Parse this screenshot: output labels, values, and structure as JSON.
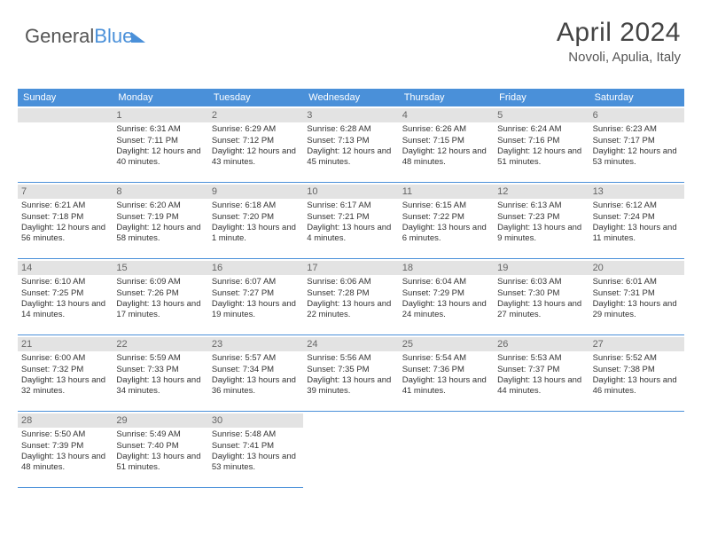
{
  "logo": {
    "part1": "General",
    "part2": "Blue"
  },
  "title": "April 2024",
  "location": "Novoli, Apulia, Italy",
  "weekdays": [
    "Sunday",
    "Monday",
    "Tuesday",
    "Wednesday",
    "Thursday",
    "Friday",
    "Saturday"
  ],
  "colors": {
    "accent": "#4a90d9",
    "daynum_bg": "#e3e3e3",
    "text": "#333333",
    "muted": "#666666",
    "background": "#ffffff"
  },
  "calendar": {
    "first_day_index": 1,
    "days_in_month": 30
  },
  "days": {
    "1": {
      "sunrise": "6:31 AM",
      "sunset": "7:11 PM",
      "daylight": "12 hours and 40 minutes."
    },
    "2": {
      "sunrise": "6:29 AM",
      "sunset": "7:12 PM",
      "daylight": "12 hours and 43 minutes."
    },
    "3": {
      "sunrise": "6:28 AM",
      "sunset": "7:13 PM",
      "daylight": "12 hours and 45 minutes."
    },
    "4": {
      "sunrise": "6:26 AM",
      "sunset": "7:15 PM",
      "daylight": "12 hours and 48 minutes."
    },
    "5": {
      "sunrise": "6:24 AM",
      "sunset": "7:16 PM",
      "daylight": "12 hours and 51 minutes."
    },
    "6": {
      "sunrise": "6:23 AM",
      "sunset": "7:17 PM",
      "daylight": "12 hours and 53 minutes."
    },
    "7": {
      "sunrise": "6:21 AM",
      "sunset": "7:18 PM",
      "daylight": "12 hours and 56 minutes."
    },
    "8": {
      "sunrise": "6:20 AM",
      "sunset": "7:19 PM",
      "daylight": "12 hours and 58 minutes."
    },
    "9": {
      "sunrise": "6:18 AM",
      "sunset": "7:20 PM",
      "daylight": "13 hours and 1 minute."
    },
    "10": {
      "sunrise": "6:17 AM",
      "sunset": "7:21 PM",
      "daylight": "13 hours and 4 minutes."
    },
    "11": {
      "sunrise": "6:15 AM",
      "sunset": "7:22 PM",
      "daylight": "13 hours and 6 minutes."
    },
    "12": {
      "sunrise": "6:13 AM",
      "sunset": "7:23 PM",
      "daylight": "13 hours and 9 minutes."
    },
    "13": {
      "sunrise": "6:12 AM",
      "sunset": "7:24 PM",
      "daylight": "13 hours and 11 minutes."
    },
    "14": {
      "sunrise": "6:10 AM",
      "sunset": "7:25 PM",
      "daylight": "13 hours and 14 minutes."
    },
    "15": {
      "sunrise": "6:09 AM",
      "sunset": "7:26 PM",
      "daylight": "13 hours and 17 minutes."
    },
    "16": {
      "sunrise": "6:07 AM",
      "sunset": "7:27 PM",
      "daylight": "13 hours and 19 minutes."
    },
    "17": {
      "sunrise": "6:06 AM",
      "sunset": "7:28 PM",
      "daylight": "13 hours and 22 minutes."
    },
    "18": {
      "sunrise": "6:04 AM",
      "sunset": "7:29 PM",
      "daylight": "13 hours and 24 minutes."
    },
    "19": {
      "sunrise": "6:03 AM",
      "sunset": "7:30 PM",
      "daylight": "13 hours and 27 minutes."
    },
    "20": {
      "sunrise": "6:01 AM",
      "sunset": "7:31 PM",
      "daylight": "13 hours and 29 minutes."
    },
    "21": {
      "sunrise": "6:00 AM",
      "sunset": "7:32 PM",
      "daylight": "13 hours and 32 minutes."
    },
    "22": {
      "sunrise": "5:59 AM",
      "sunset": "7:33 PM",
      "daylight": "13 hours and 34 minutes."
    },
    "23": {
      "sunrise": "5:57 AM",
      "sunset": "7:34 PM",
      "daylight": "13 hours and 36 minutes."
    },
    "24": {
      "sunrise": "5:56 AM",
      "sunset": "7:35 PM",
      "daylight": "13 hours and 39 minutes."
    },
    "25": {
      "sunrise": "5:54 AM",
      "sunset": "7:36 PM",
      "daylight": "13 hours and 41 minutes."
    },
    "26": {
      "sunrise": "5:53 AM",
      "sunset": "7:37 PM",
      "daylight": "13 hours and 44 minutes."
    },
    "27": {
      "sunrise": "5:52 AM",
      "sunset": "7:38 PM",
      "daylight": "13 hours and 46 minutes."
    },
    "28": {
      "sunrise": "5:50 AM",
      "sunset": "7:39 PM",
      "daylight": "13 hours and 48 minutes."
    },
    "29": {
      "sunrise": "5:49 AM",
      "sunset": "7:40 PM",
      "daylight": "13 hours and 51 minutes."
    },
    "30": {
      "sunrise": "5:48 AM",
      "sunset": "7:41 PM",
      "daylight": "13 hours and 53 minutes."
    }
  },
  "labels": {
    "sunrise": "Sunrise: ",
    "sunset": "Sunset: ",
    "daylight": "Daylight: "
  }
}
